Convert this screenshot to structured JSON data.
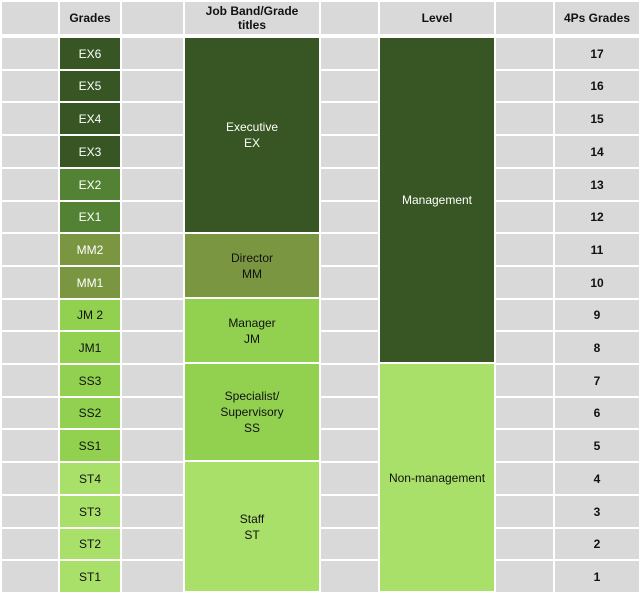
{
  "headers": {
    "grades": "Grades",
    "band": "Job Band/Grade\ntitles",
    "level": "Level",
    "fourps": "4Ps Grades"
  },
  "colors": {
    "dark_green": "#375623",
    "medium_green": "#548235",
    "olive_green": "#7a9640",
    "light_green": "#92d050",
    "pale_green": "#a9e06a",
    "gray": "#d9d9d9"
  },
  "rows": [
    {
      "grade": "EX6",
      "fourps": "17",
      "grade_color": "#375623",
      "grade_text": "#ffffff"
    },
    {
      "grade": "EX5",
      "fourps": "16",
      "grade_color": "#375623",
      "grade_text": "#ffffff"
    },
    {
      "grade": "EX4",
      "fourps": "15",
      "grade_color": "#375623",
      "grade_text": "#ffffff"
    },
    {
      "grade": "EX3",
      "fourps": "14",
      "grade_color": "#375623",
      "grade_text": "#ffffff"
    },
    {
      "grade": "EX2",
      "fourps": "13",
      "grade_color": "#548235",
      "grade_text": "#ffffff"
    },
    {
      "grade": "EX1",
      "fourps": "12",
      "grade_color": "#548235",
      "grade_text": "#ffffff"
    },
    {
      "grade": "MM2",
      "fourps": "11",
      "grade_color": "#7a9640",
      "grade_text": "#ffffff"
    },
    {
      "grade": "MM1",
      "fourps": "10",
      "grade_color": "#7a9640",
      "grade_text": "#ffffff"
    },
    {
      "grade": "JM 2",
      "fourps": "9",
      "grade_color": "#92d050",
      "grade_text": "#111111"
    },
    {
      "grade": "JM1",
      "fourps": "8",
      "grade_color": "#92d050",
      "grade_text": "#111111"
    },
    {
      "grade": "SS3",
      "fourps": "7",
      "grade_color": "#92d050",
      "grade_text": "#111111"
    },
    {
      "grade": "SS2",
      "fourps": "6",
      "grade_color": "#92d050",
      "grade_text": "#111111"
    },
    {
      "grade": "SS1",
      "fourps": "5",
      "grade_color": "#92d050",
      "grade_text": "#111111"
    },
    {
      "grade": "ST4",
      "fourps": "4",
      "grade_color": "#a9e06a",
      "grade_text": "#111111"
    },
    {
      "grade": "ST3",
      "fourps": "3",
      "grade_color": "#a9e06a",
      "grade_text": "#111111"
    },
    {
      "grade": "ST2",
      "fourps": "2",
      "grade_color": "#a9e06a",
      "grade_text": "#111111"
    },
    {
      "grade": "ST1",
      "fourps": "1",
      "grade_color": "#a9e06a",
      "grade_text": "#111111"
    }
  ],
  "bands": [
    {
      "label": "Executive\nEX",
      "color": "#375623",
      "text_color": "#ffffff"
    },
    {
      "label": "Director\nMM",
      "color": "#7a9640",
      "text_color": "#111111"
    },
    {
      "label": "Manager\nJM",
      "color": "#92d050",
      "text_color": "#111111"
    },
    {
      "label": "Specialist/\nSupervisory\nSS",
      "color": "#92d050",
      "text_color": "#111111"
    },
    {
      "label": "Staff\nST",
      "color": "#a9e06a",
      "text_color": "#111111"
    }
  ],
  "levels": [
    {
      "label": "Management",
      "color": "#375623",
      "text_color": "#ffffff"
    },
    {
      "label": "Non-management",
      "color": "#a9e06a",
      "text_color": "#111111"
    }
  ]
}
